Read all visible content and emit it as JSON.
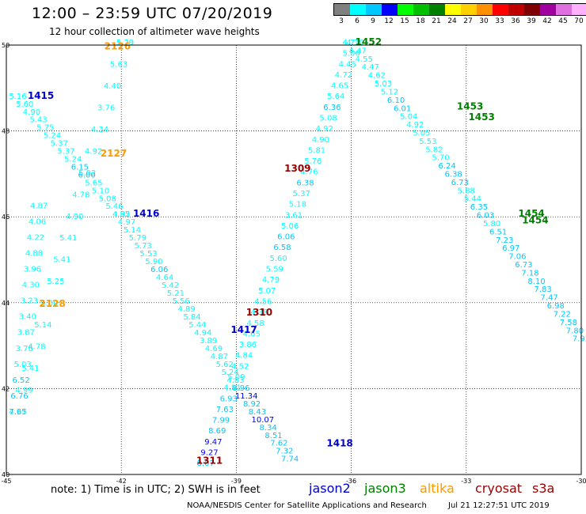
{
  "header": {
    "title": "12:00 – 23:59 UTC 07/20/2019",
    "subtitle": "12 hour collection of altimeter wave heights"
  },
  "legend": {
    "unit_label": "(ft)",
    "bins": [
      {
        "label": "3",
        "color": "#808080"
      },
      {
        "label": "6",
        "color": "#00ffff"
      },
      {
        "label": "9",
        "color": "#00c8ff"
      },
      {
        "label": "12",
        "color": "#0000ff"
      },
      {
        "label": "15",
        "color": "#00ff00"
      },
      {
        "label": "18",
        "color": "#00c000"
      },
      {
        "label": "21",
        "color": "#008000"
      },
      {
        "label": "24",
        "color": "#ffff00"
      },
      {
        "label": "27",
        "color": "#ffd000"
      },
      {
        "label": "30",
        "color": "#ff9000"
      },
      {
        "label": "33",
        "color": "#ff0000"
      },
      {
        "label": "36",
        "color": "#c00000"
      },
      {
        "label": "39",
        "color": "#800000"
      },
      {
        "label": "42",
        "color": "#a000a0"
      },
      {
        "label": "45",
        "color": "#e070e0"
      },
      {
        "label": "70",
        "color": "#ffb0ff"
      },
      {
        "label": "",
        "color": "#000000"
      }
    ]
  },
  "map": {
    "lon_range": [
      -45,
      -30
    ],
    "lat_range": [
      40,
      50
    ],
    "lon_ticks": [
      -45,
      -42,
      -39,
      -36,
      -33,
      -30
    ],
    "lat_ticks": [
      40,
      42,
      44,
      46,
      48,
      50
    ],
    "lon_labels": [
      "-45",
      "-42",
      "-39",
      "-36",
      "-33",
      "-30"
    ],
    "lat_labels": [
      "40",
      "42",
      "44",
      "46",
      "48",
      "50"
    ]
  },
  "satellites": {
    "jason2": {
      "name": "jason2",
      "color": "#0000cc"
    },
    "jason3": {
      "name": "jason3",
      "color": "#008000"
    },
    "altika": {
      "name": "altika",
      "color": "#ff9900"
    },
    "cryosat": {
      "name": "cryosat",
      "color": "#990000"
    },
    "s3a": {
      "name": "s3a",
      "color": "#990000"
    }
  },
  "track_labels": [
    {
      "text": "2126",
      "lon": -42.1,
      "lat": 49.9,
      "sat": "altika"
    },
    {
      "text": "2127",
      "lon": -42.2,
      "lat": 47.4,
      "sat": "altika"
    },
    {
      "text": "2128",
      "lon": -43.8,
      "lat": 43.9,
      "sat": "altika"
    },
    {
      "text": "1415",
      "lon": -44.1,
      "lat": 48.75,
      "sat": "jason2"
    },
    {
      "text": "1416",
      "lon": -41.35,
      "lat": 46.0,
      "sat": "jason2"
    },
    {
      "text": "1417",
      "lon": -38.8,
      "lat": 43.3,
      "sat": "jason2"
    },
    {
      "text": "1418",
      "lon": -36.3,
      "lat": 40.65,
      "sat": "jason2"
    },
    {
      "text": "1452",
      "lon": -35.55,
      "lat": 50.0,
      "sat": "jason3"
    },
    {
      "text": "1453",
      "lon": -32.9,
      "lat": 48.5,
      "sat": "jason3"
    },
    {
      "text": "1453",
      "lon": -32.6,
      "lat": 48.25,
      "sat": "jason3"
    },
    {
      "text": "1454",
      "lon": -31.3,
      "lat": 46.0,
      "sat": "jason3"
    },
    {
      "text": "1454",
      "lon": -31.2,
      "lat": 45.85,
      "sat": "jason3"
    },
    {
      "text": "1309",
      "lon": -37.4,
      "lat": 47.05,
      "sat": "cryosat"
    },
    {
      "text": "1310",
      "lon": -38.4,
      "lat": 43.7,
      "sat": "cryosat"
    },
    {
      "text": "1311",
      "lon": -39.7,
      "lat": 40.25,
      "sat": "cryosat"
    }
  ],
  "tracks": [
    {
      "id": "altika-2126",
      "sat": "altika",
      "start": [
        -41.9,
        50.0
      ],
      "end": [
        -44.7,
        41.4
      ],
      "values": [
        "5.29",
        "5.63",
        "4.40",
        "3.76",
        "4.34",
        "4.92",
        "5.02",
        "4.78",
        "4.90",
        "5.41",
        "5.41",
        "5.25",
        "5.00",
        "5.14",
        "4.78",
        "5.41",
        "4.99",
        "4.97"
      ]
    },
    {
      "id": "altika-2128",
      "sat": "altika",
      "start": [
        -44.15,
        46.2
      ],
      "end": [
        -44.7,
        41.4
      ],
      "values": [
        "4.87",
        "4.06",
        "4.22",
        "4.88",
        "3.96",
        "4.30",
        "3.23",
        "3.40",
        "3.87",
        "3.76",
        "5.03",
        "6.52",
        "6.76",
        "7.65"
      ]
    },
    {
      "id": "jason2-1415",
      "sat": "jason2",
      "start": [
        -44.7,
        48.75
      ],
      "end": [
        -42.0,
        46.0
      ],
      "values": [
        "5.16",
        "5.60",
        "4.90",
        "5.43",
        "5.75",
        "5.24",
        "5.37",
        "5.37",
        "5.24",
        "6.15",
        "6.00",
        "5.65",
        "5.10",
        "5.08",
        "5.46",
        "4.95"
      ]
    },
    {
      "id": "jason2-1416",
      "sat": "jason2",
      "start": [
        -42.0,
        46.0
      ],
      "end": [
        -37.6,
        40.3
      ],
      "values": [
        "4.82",
        "4.97",
        "5.14",
        "5.79",
        "5.73",
        "5.53",
        "5.90",
        "6.06",
        "4.64",
        "5.42",
        "5.21",
        "5.56",
        "4.89",
        "5.84",
        "5.44",
        "4.94",
        "3.89",
        "4.69",
        "4.87",
        "5.62",
        "5.24",
        "4.83",
        "8.96",
        "11.34",
        "8.92",
        "8.43",
        "10.07",
        "8.34",
        "8.51",
        "7.62",
        "7.32",
        "7.74"
      ]
    },
    {
      "id": "jason3-1452",
      "sat": "jason3",
      "start": [
        -36.0,
        50.0
      ],
      "end": [
        -30.0,
        43.1
      ],
      "values": [
        "4.72",
        "4.47",
        "4.55",
        "4.47",
        "4.62",
        "5.03",
        "5.12",
        "6.10",
        "6.01",
        "5.04",
        "4.92",
        "5.05",
        "5.53",
        "5.82",
        "5.70",
        "6.24",
        "6.38",
        "6.73",
        "5.88",
        "5.44",
        "6.35",
        "6.03",
        "5.80",
        "6.51",
        "7.23",
        "6.97",
        "7.06",
        "6.73",
        "7.18",
        "8.10",
        "7.83",
        "7.47",
        "6.98",
        "7.22",
        "7.58",
        "7.80",
        "7.95"
      ]
    },
    {
      "id": "cryosat-1309",
      "sat": "cryosat",
      "start": [
        -35.9,
        50.0
      ],
      "end": [
        -39.8,
        40.2
      ],
      "values": [
        "4.39",
        "5.06",
        "4.45",
        "4.72",
        "4.65",
        "5.64",
        "6.36",
        "5.08",
        "4.92",
        "4.90",
        "5.81",
        "5.76",
        "4.76",
        "6.38",
        "5.37",
        "5.18",
        "3.61",
        "5.06",
        "6.06",
        "6.58",
        "5.60",
        "5.59",
        "4.79",
        "5.07",
        "4.56",
        "4.38",
        "4.58",
        "4.65",
        "3.86",
        "4.84",
        "4.52",
        "5.09",
        "4.81",
        "6.93",
        "7.63",
        "7.99",
        "8.69",
        "9.47",
        "9.27",
        "8.07"
      ]
    }
  ],
  "footer": {
    "note": "note: 1) Time is in UTC; 2) SWH is in feet",
    "credit": "NOAA/NESDIS Center for Satellite Applications and Research",
    "timestamp": "Jul 21 12:27:51 UTC 2019"
  }
}
